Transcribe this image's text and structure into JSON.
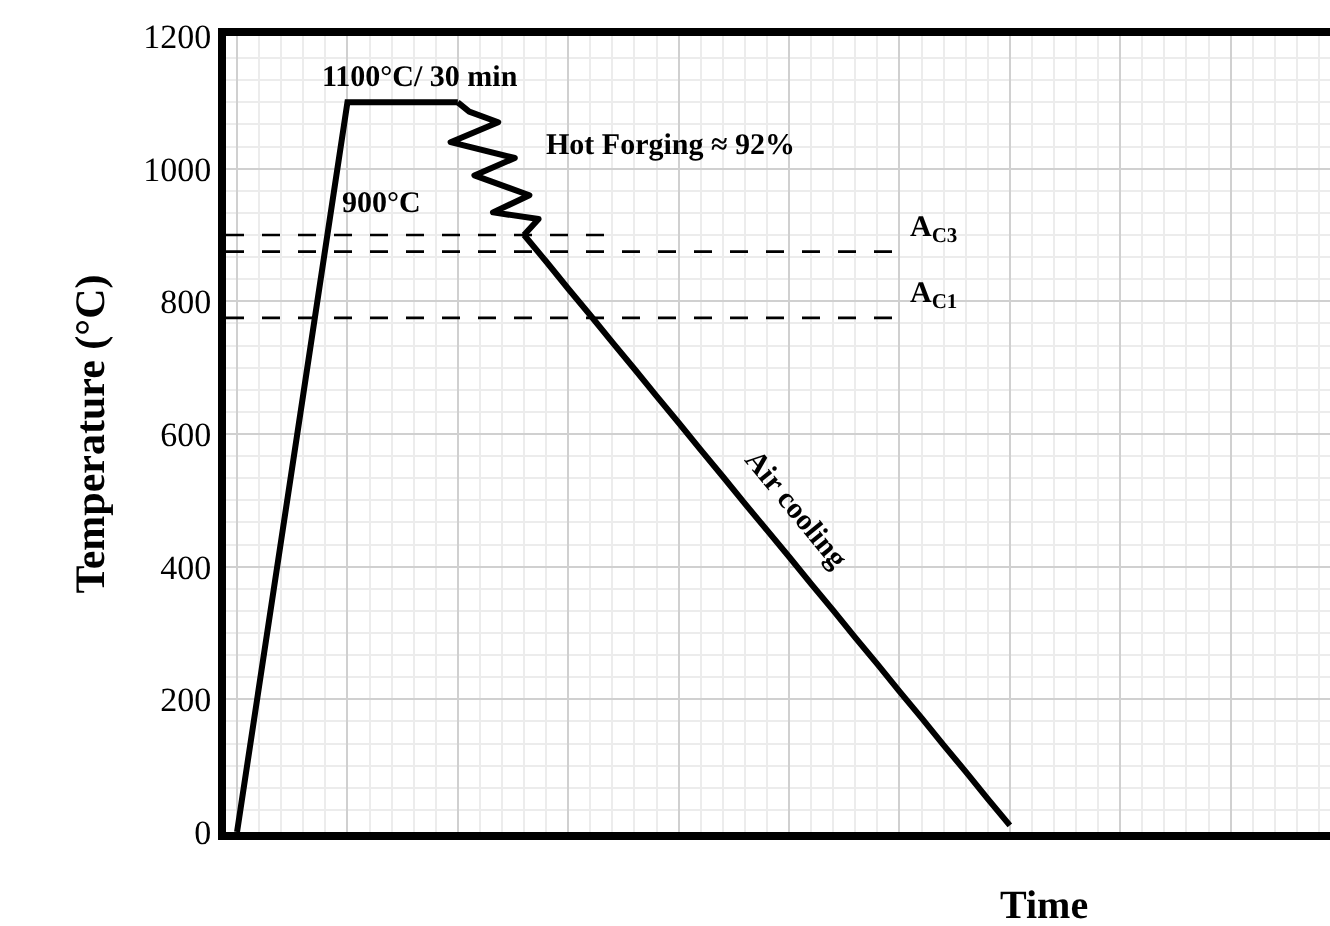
{
  "chart_data": {
    "type": "line",
    "xlabel": "Time",
    "ylabel": "Temperature (°C)",
    "categories": [
      null,
      null,
      null,
      null,
      null,
      null,
      null,
      null,
      null,
      null,
      null,
      null,
      null,
      null,
      null,
      null,
      null,
      null,
      null,
      null,
      null,
      null,
      null,
      null,
      null,
      null,
      null,
      null,
      null,
      null,
      null,
      null,
      null,
      null,
      null,
      null,
      null,
      null,
      null,
      null,
      null,
      null,
      null,
      null,
      null,
      null,
      null,
      null,
      null,
      null
    ],
    "series": [
      {
        "color": "#000000",
        "values": [
          0,
          220,
          440,
          660,
          880,
          1100,
          1100,
          1100,
          1100,
          1100,
          1100,
          null,
          null,
          900,
          860,
          819,
          779,
          738,
          698,
          657,
          617,
          576,
          536,
          495,
          455,
          415,
          374,
          334,
          293,
          253,
          212,
          172,
          131,
          91,
          50,
          10,
          null,
          null,
          null,
          null,
          null,
          null,
          null,
          null,
          null,
          null,
          null,
          null,
          null,
          null
        ]
      }
    ],
    "ref_lines": [
      {
        "axis": "y",
        "value": 900,
        "label": "900°C",
        "color": "#000000",
        "line_style": "dashed"
      },
      {
        "axis": "y",
        "value": 875,
        "label": "A$_{C3}$",
        "color": "#000000",
        "line_style": "dashed"
      },
      {
        "axis": "y",
        "value": 775,
        "label": "A$_{C1}$",
        "color": "#000000",
        "line_style": "dashed"
      }
    ],
    "annotations": [
      "1100°C/ 30 min",
      "Hot Forging ≈ 92%",
      "Air cooling"
    ],
    "ylim": [
      0,
      1200
    ],
    "yticks": [
      0,
      200,
      400,
      600,
      800,
      1000,
      1200
    ],
    "tick_labels": "y",
    "grid": true,
    "marker": "none",
    "line_style": "solid"
  }
}
